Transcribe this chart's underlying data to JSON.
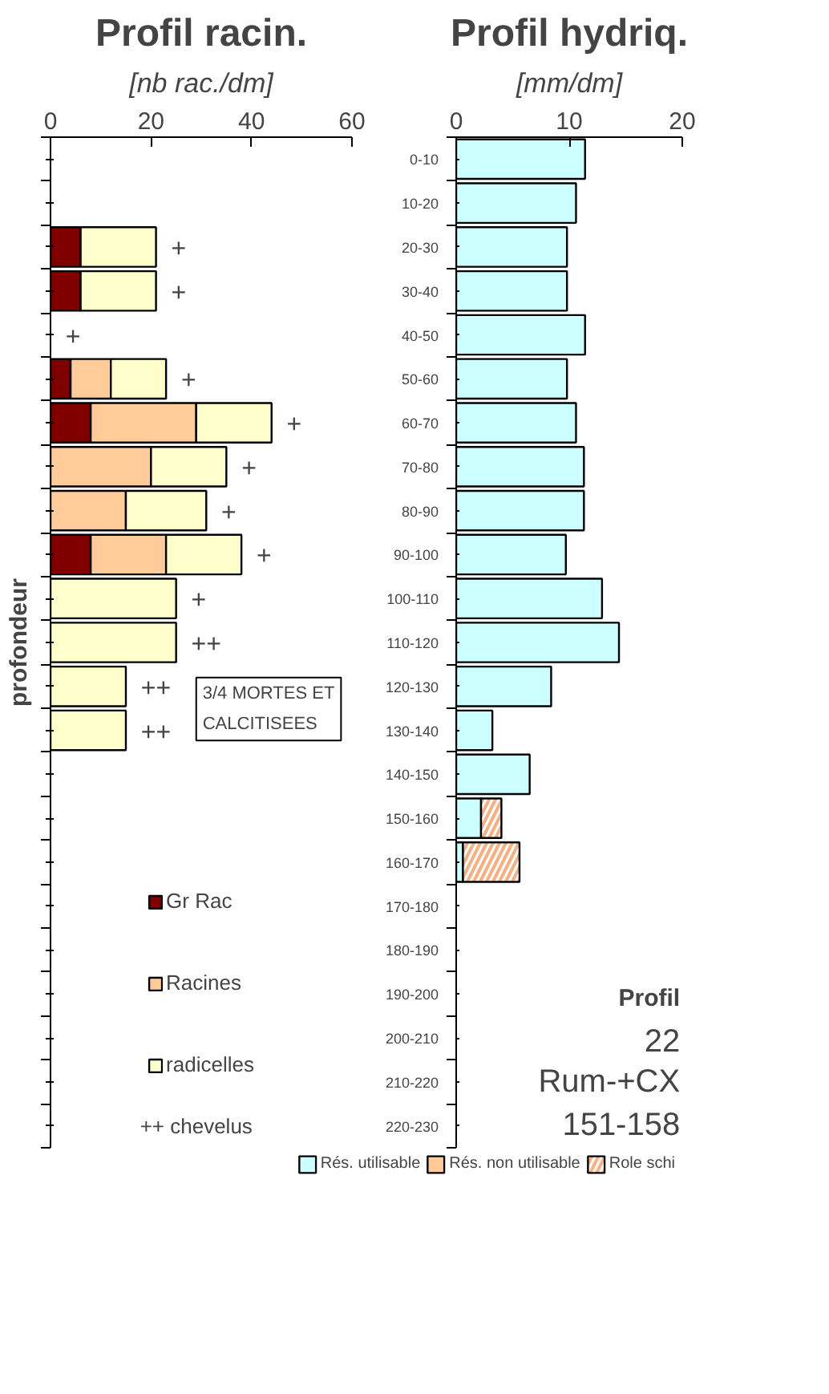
{
  "chart_data": [
    {
      "type": "bar",
      "orientation": "horizontal",
      "stacked": true,
      "title": "Profil racin.",
      "xlabel": "[nb rac./dm]",
      "ylabel": "profondeur",
      "categories": [
        null,
        null,
        null,
        null,
        null,
        null,
        null,
        null,
        null,
        null,
        null,
        null,
        null,
        null,
        null,
        null,
        null,
        null,
        null,
        null,
        null,
        null,
        null
      ],
      "series": [
        {
          "name": "Gr Rac",
          "color": "#800000",
          "values": [
            null,
            null,
            6,
            6,
            null,
            4,
            8,
            null,
            null,
            8,
            null,
            null,
            null,
            null,
            null,
            null,
            null,
            null,
            null,
            null,
            null,
            null,
            null
          ]
        },
        {
          "name": "Racines",
          "color": "#ffcc99",
          "values": [
            null,
            null,
            null,
            null,
            null,
            8,
            21,
            20,
            15,
            15,
            null,
            null,
            null,
            null,
            null,
            null,
            null,
            null,
            null,
            null,
            null,
            null,
            null
          ]
        },
        {
          "name": "radicelles",
          "color": "#ffffcc",
          "values": [
            null,
            null,
            15,
            15,
            null,
            11,
            15,
            15,
            16,
            15,
            25,
            25,
            15,
            15,
            null,
            null,
            null,
            null,
            null,
            null,
            null,
            null,
            null
          ],
          "value_labels": [
            null,
            null,
            "+",
            "+",
            "+",
            "+",
            "+",
            "+",
            "+",
            "+",
            "+",
            "++",
            "++",
            "++",
            null,
            null,
            null,
            null,
            null,
            null,
            null,
            null,
            null
          ]
        }
      ],
      "xlim": [
        0,
        60
      ],
      "xticks": [
        0,
        20,
        40,
        60
      ],
      "tick_labels": "x",
      "legend": "bottom",
      "annotations": [
        "3/4 MORTES ET\nCALCITISEES",
        "++ chevelus"
      ]
    },
    {
      "type": "bar",
      "orientation": "horizontal",
      "stacked": true,
      "title": "Profil hydriq.",
      "xlabel": "[mm/dm]",
      "categories": [
        "0-10",
        "10-20",
        "20-30",
        "30-40",
        "40-50",
        "50-60",
        "60-70",
        "70-80",
        "80-90",
        "90-100",
        "100-110",
        "110-120",
        "120-130",
        "130-140",
        "140-150",
        "150-160",
        "160-170",
        "170-180",
        "180-190",
        "190-200",
        "200-210",
        "210-220",
        "220-230"
      ],
      "series": [
        {
          "name": "Rés. utilisable",
          "color": "#ccffff",
          "values": [
            11.4,
            10.6,
            9.8,
            9.8,
            11.4,
            9.8,
            10.6,
            11.3,
            11.3,
            9.7,
            12.9,
            14.4,
            8.4,
            3.2,
            6.5,
            2.2,
            0.6,
            null,
            null,
            null,
            null,
            null,
            null
          ]
        },
        {
          "name": "Rés. non utilisable",
          "color": "#ffcc99",
          "values": [
            null,
            null,
            null,
            null,
            null,
            null,
            null,
            null,
            null,
            null,
            null,
            null,
            null,
            null,
            null,
            null,
            null,
            null,
            null,
            null,
            null,
            null,
            null
          ]
        },
        {
          "name": "Role schi",
          "color": "#f4b183",
          "values": [
            null,
            null,
            null,
            null,
            null,
            null,
            null,
            null,
            null,
            null,
            null,
            null,
            null,
            null,
            null,
            1.8,
            5.0,
            null,
            null,
            null,
            null,
            null,
            null
          ]
        }
      ],
      "xlim": [
        0,
        20
      ],
      "xticks": [
        0,
        10,
        20
      ],
      "legend": "bottom",
      "annotations": [
        "Profil",
        "22",
        "Rum-+CX",
        "151-158"
      ]
    }
  ]
}
